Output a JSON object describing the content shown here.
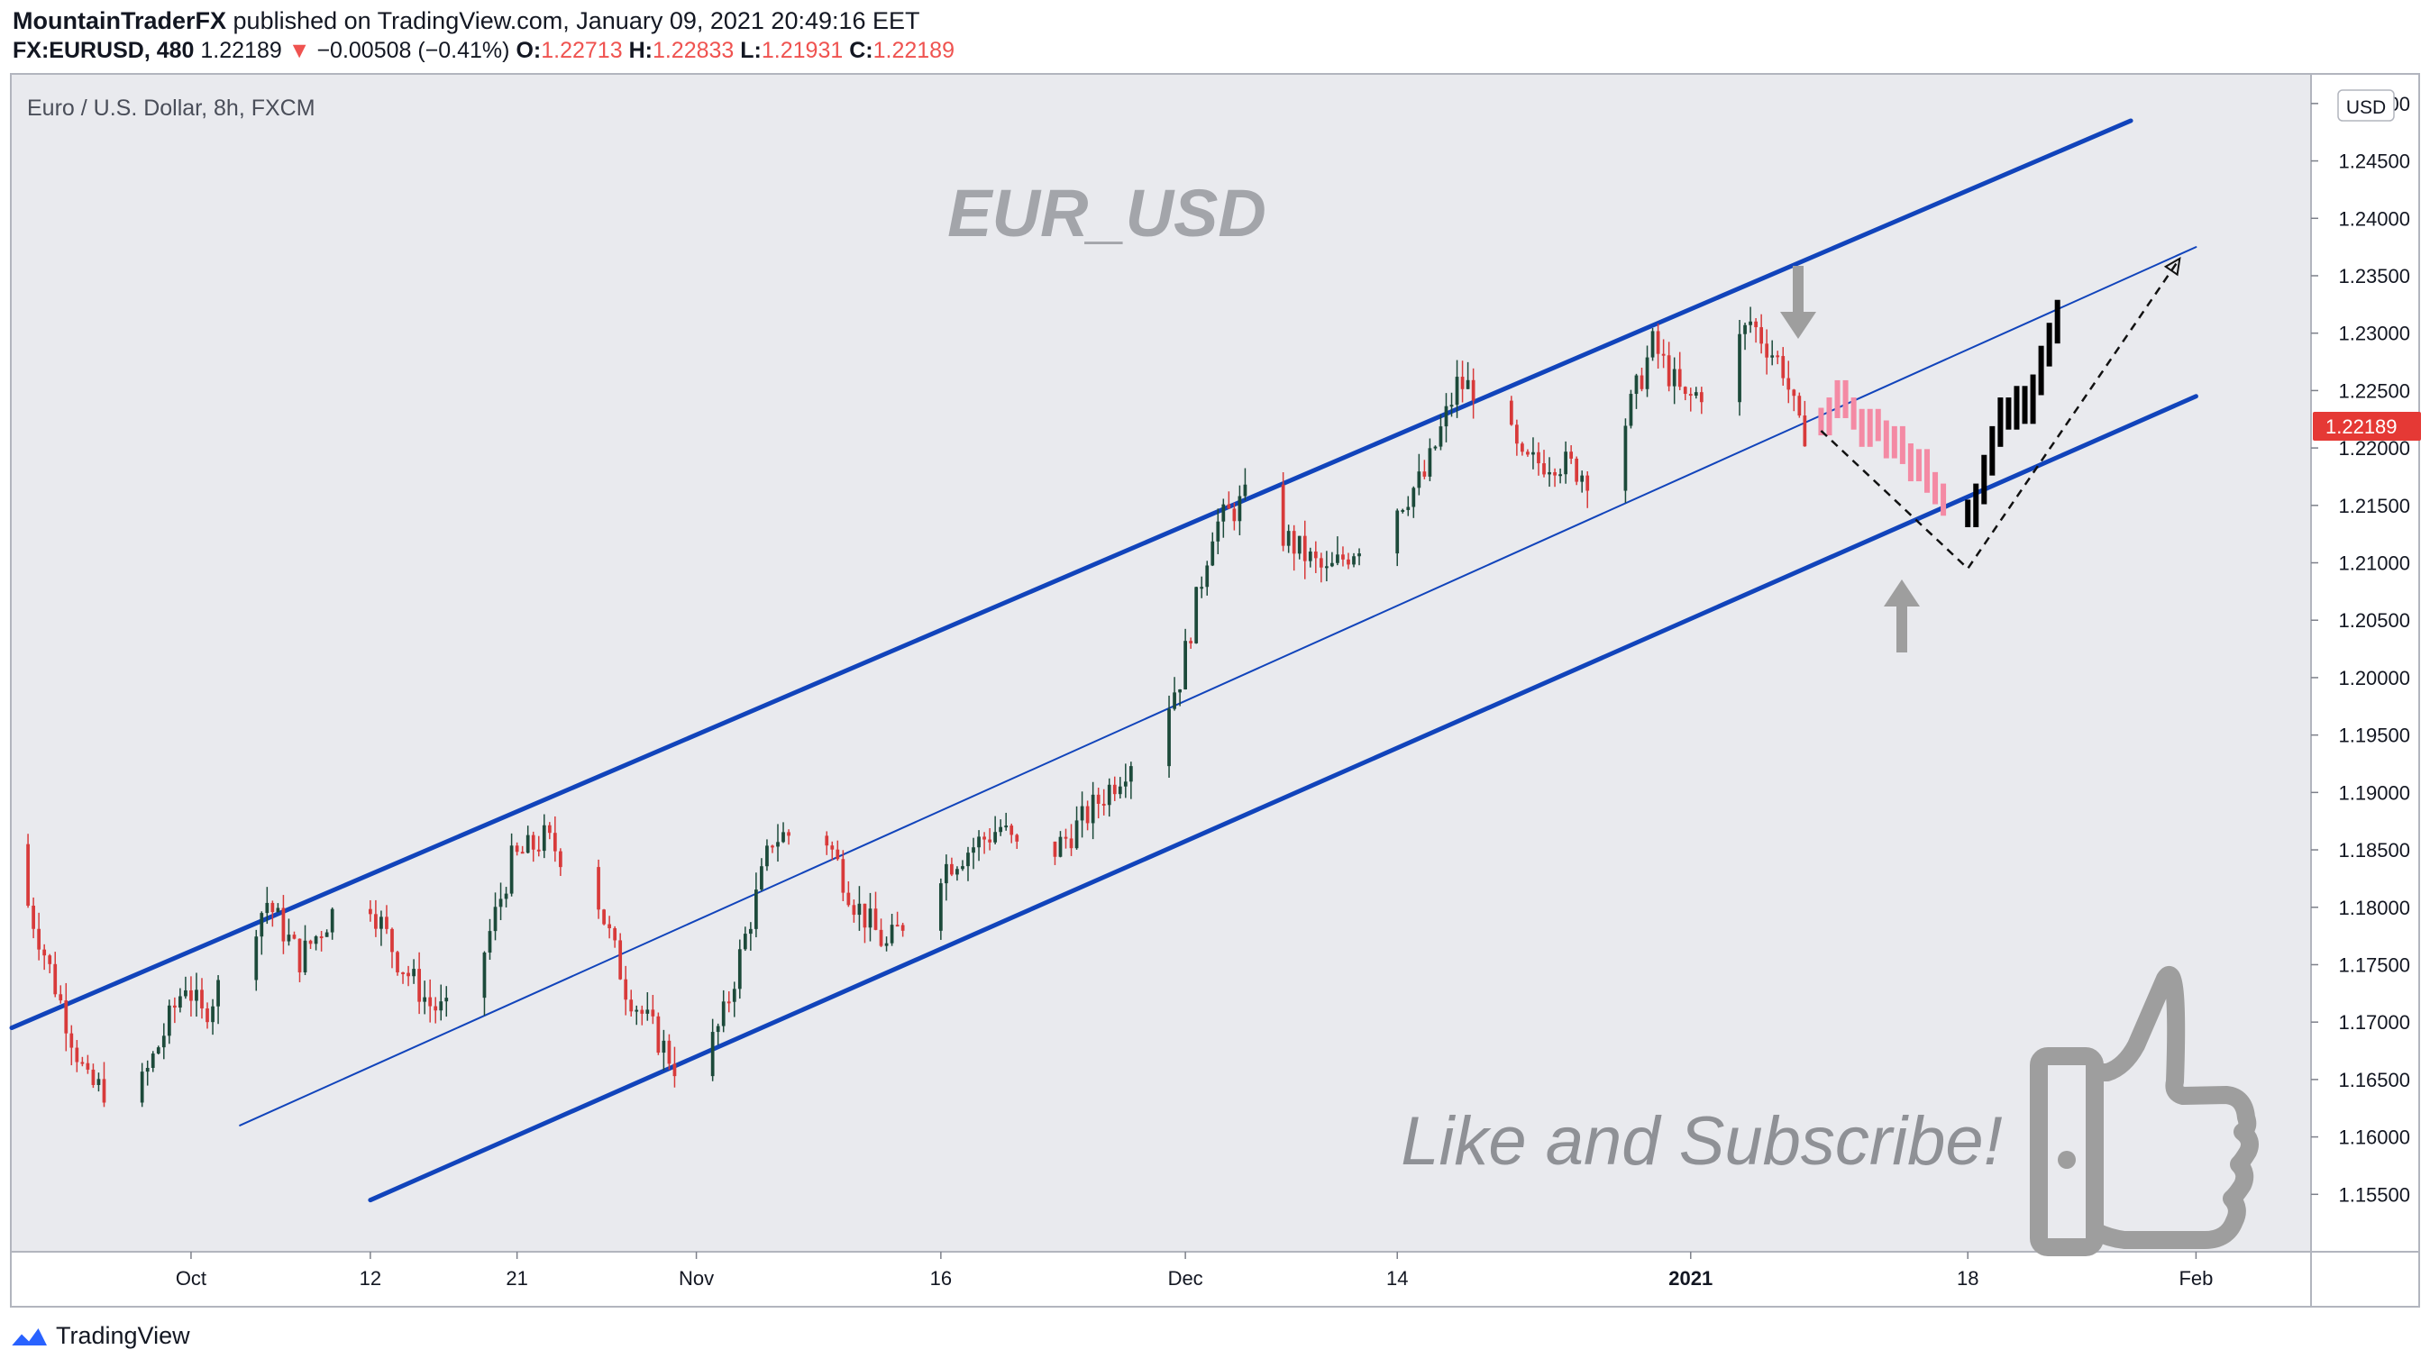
{
  "header": {
    "publisher": "MountainTraderFX",
    "published_text": "published on TradingView.com, January 09, 2021 20:49:16 EET",
    "symbol": "FX:EURUSD, 480",
    "last_price": "1.22189",
    "change_arrow": "▼",
    "change": "−0.00508 (−0.41%)",
    "open_label": "O:",
    "open_value": "1.22713",
    "high_label": "H:",
    "high_value": "1.22833",
    "low_label": "L:",
    "low_value": "1.21931",
    "close_label": "C:",
    "close_value": "1.22189"
  },
  "footer": {
    "brand": "TradingView",
    "logo_icon": "tradingview-logo-icon"
  },
  "colors": {
    "chart_background": "#e9eaee",
    "up_candle": "#1c4a3a",
    "down_candle": "#d83a3a",
    "projection_down": "#f48aa4",
    "projection_up": "#000000",
    "channel_line": "#1144bb",
    "price_tag": "#e53935",
    "annotation_gray": "#9e9e9e"
  },
  "chart_data": {
    "type": "candlestick",
    "symbol_label": "Euro / U.S. Dollar, 8h, FXCM",
    "currency_label": "USD",
    "current_price_label": "1.22189",
    "ylim": [
      1.15,
      1.2525
    ],
    "y_ticks": [
      "1.25000",
      "1.24500",
      "1.24000",
      "1.23500",
      "1.23000",
      "1.22500",
      "1.22000",
      "1.21500",
      "1.21000",
      "1.20500",
      "1.20000",
      "1.19500",
      "1.19000",
      "1.18500",
      "1.18000",
      "1.17500",
      "1.17000",
      "1.16500",
      "1.16000",
      "1.15500"
    ],
    "x_tick_labels": [
      {
        "label": "Oct",
        "bold": false
      },
      {
        "label": "12",
        "bold": false
      },
      {
        "label": "21",
        "bold": false
      },
      {
        "label": "Nov",
        "bold": false
      },
      {
        "label": "16",
        "bold": false
      },
      {
        "label": "Dec",
        "bold": false
      },
      {
        "label": "14",
        "bold": false
      },
      {
        "label": "2021",
        "bold": true
      },
      {
        "label": "18",
        "bold": false
      },
      {
        "label": "Feb",
        "bold": false
      }
    ],
    "x_range": [
      "2020-09-20",
      "2021-02-08"
    ],
    "x_tick_dates": [
      "2020-10-01",
      "2020-10-12",
      "2020-10-21",
      "2020-11-01",
      "2020-11-16",
      "2020-12-01",
      "2020-12-14",
      "2021-01-01",
      "2021-01-18",
      "2021-02-01"
    ],
    "price_path": [
      [
        "2020-09-20",
        1.1855
      ],
      [
        "2020-09-22",
        1.1775
      ],
      [
        "2020-09-25",
        1.1645
      ],
      [
        "2020-09-28",
        1.1635
      ],
      [
        "2020-10-01",
        1.1735
      ],
      [
        "2020-10-02",
        1.1705
      ],
      [
        "2020-10-06",
        1.1805
      ],
      [
        "2020-10-08",
        1.1755
      ],
      [
        "2020-10-10",
        1.1795
      ],
      [
        "2020-10-12",
        1.1815
      ],
      [
        "2020-10-14",
        1.1755
      ],
      [
        "2020-10-16",
        1.1715
      ],
      [
        "2020-10-18",
        1.17
      ],
      [
        "2020-10-21",
        1.184
      ],
      [
        "2020-10-23",
        1.186
      ],
      [
        "2020-10-26",
        1.182
      ],
      [
        "2020-10-28",
        1.173
      ],
      [
        "2020-11-01",
        1.164
      ],
      [
        "2020-11-03",
        1.1705
      ],
      [
        "2020-11-06",
        1.186
      ],
      [
        "2020-11-09",
        1.187
      ],
      [
        "2020-11-11",
        1.1805
      ],
      [
        "2020-11-13",
        1.1765
      ],
      [
        "2020-11-16",
        1.183
      ],
      [
        "2020-11-20",
        1.187
      ],
      [
        "2020-11-22",
        1.183
      ],
      [
        "2020-11-25",
        1.1875
      ],
      [
        "2020-11-27",
        1.191
      ],
      [
        "2020-11-30",
        1.197
      ],
      [
        "2020-12-01",
        1.2
      ],
      [
        "2020-12-03",
        1.213
      ],
      [
        "2020-12-05",
        1.2155
      ],
      [
        "2020-12-08",
        1.2115
      ],
      [
        "2020-12-10",
        1.209
      ],
      [
        "2020-12-14",
        1.2145
      ],
      [
        "2020-12-16",
        1.2175
      ],
      [
        "2020-12-18",
        1.2255
      ],
      [
        "2020-12-20",
        1.225
      ],
      [
        "2020-12-22",
        1.2185
      ],
      [
        "2020-12-24",
        1.219
      ],
      [
        "2020-12-27",
        1.217
      ],
      [
        "2020-12-30",
        1.229
      ],
      [
        "2021-01-01",
        1.224
      ],
      [
        "2021-01-03",
        1.226
      ],
      [
        "2021-01-05",
        1.231
      ],
      [
        "2021-01-07",
        1.227
      ],
      [
        "2021-01-08",
        1.2215
      ]
    ],
    "projection_down": [
      1.222,
      1.2235,
      1.225,
      1.2235,
      1.2225,
      1.221,
      1.2225,
      1.2215,
      1.22,
      1.221,
      1.2195,
      1.218,
      1.219,
      1.217,
      1.216,
      1.215
    ],
    "projection_up": [
      1.214,
      1.216,
      1.2185,
      1.221,
      1.2235,
      1.2225,
      1.2245,
      1.223,
      1.2255,
      1.228,
      1.23,
      1.232
    ],
    "channel_lines": [
      {
        "name": "upper",
        "from": [
          "2020-09-20",
          1.1695
        ],
        "to": [
          "2021-01-28",
          1.2485
        ]
      },
      {
        "name": "middle",
        "from": [
          "2020-10-04",
          1.161
        ],
        "to": [
          "2021-02-01",
          1.2375
        ]
      },
      {
        "name": "lower",
        "from": [
          "2020-10-12",
          1.1545
        ],
        "to": [
          "2021-02-01",
          1.2245
        ]
      }
    ],
    "dashed_path": [
      [
        "2021-01-09",
        1.2215
      ],
      [
        "2021-01-18",
        1.2095
      ],
      [
        "2021-01-31",
        1.2365
      ]
    ],
    "annotations": {
      "title": "EUR_USD",
      "cta": "Like and Subscribe!",
      "down_arrow_icon": "arrow-down-icon",
      "up_arrow_icon": "arrow-up-icon",
      "thumb_icon": "thumbs-up-icon"
    }
  }
}
